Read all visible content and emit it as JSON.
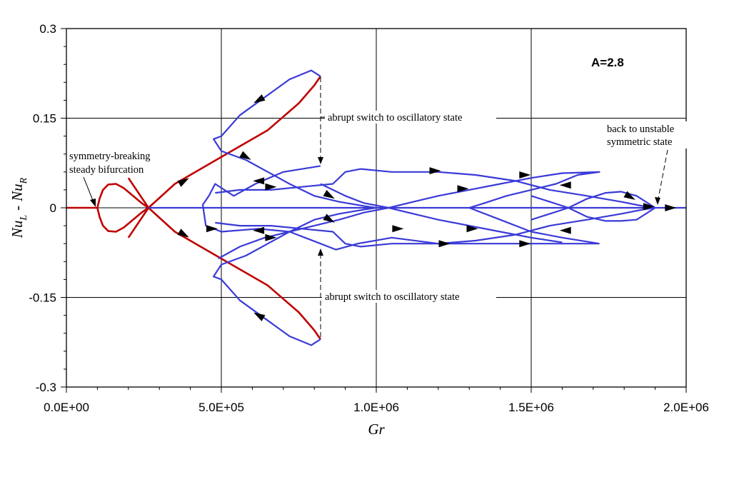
{
  "chart_data": {
    "type": "line",
    "xlabel": "Gr",
    "ylabel": {
      "base1": "Nu",
      "sub1": "L",
      "minus": "-",
      "base2": "Nu",
      "sub2": "R"
    },
    "xlim": [
      0,
      2000000
    ],
    "ylim": [
      -0.3,
      0.3
    ],
    "grid": true,
    "x_ticks": [
      {
        "value": 0,
        "label": "0.0E+00"
      },
      {
        "value": 500000,
        "label": "5.0E+05"
      },
      {
        "value": 1000000,
        "label": "1.0E+06"
      },
      {
        "value": 1500000,
        "label": "1.5E+06"
      },
      {
        "value": 2000000,
        "label": "2.0E+06"
      }
    ],
    "y_ticks": [
      {
        "value": 0.3,
        "label": "0.3"
      },
      {
        "value": 0.15,
        "label": "0.15"
      },
      {
        "value": 0,
        "label": "0"
      },
      {
        "value": -0.15,
        "label": "-0.15"
      },
      {
        "value": -0.3,
        "label": "-0.3"
      }
    ],
    "parameter_label": "A=2.8",
    "annotations": {
      "symmetry_line1": "symmetry-breaking",
      "symmetry_line2": "steady bifurcation",
      "switch_upper": "abrupt switch to oscillatory state",
      "switch_lower": "abrupt switch to oscillatory state",
      "back_line1": "back to unstable",
      "back_line2": "symmetric state"
    },
    "colors": {
      "steady": "#c00000",
      "oscillatory": "#3a3ad8"
    },
    "series": [
      {
        "key": "symmetric_steady",
        "color": "#c00000",
        "points": [
          [
            0,
            0
          ],
          [
            100000,
            0
          ]
        ]
      },
      {
        "key": "steady_bubble_upper",
        "color": "#c00000",
        "points": [
          [
            100000,
            0
          ],
          [
            107000,
            0.015
          ],
          [
            118000,
            0.03
          ],
          [
            135000,
            0.039
          ],
          [
            160000,
            0.04
          ],
          [
            185000,
            0.033
          ],
          [
            215000,
            0.02
          ],
          [
            245000,
            0.007
          ],
          [
            265000,
            0
          ]
        ]
      },
      {
        "key": "steady_bubble_lower",
        "color": "#c00000",
        "points": [
          [
            100000,
            0
          ],
          [
            107000,
            -0.015
          ],
          [
            118000,
            -0.03
          ],
          [
            135000,
            -0.039
          ],
          [
            160000,
            -0.04
          ],
          [
            185000,
            -0.033
          ],
          [
            215000,
            -0.02
          ],
          [
            245000,
            -0.007
          ],
          [
            265000,
            0
          ]
        ]
      },
      {
        "key": "asymmetric_steady_upper",
        "color": "#c00000",
        "points": [
          [
            200000,
            -0.05
          ],
          [
            265000,
            0
          ],
          [
            350000,
            0.04
          ],
          [
            450000,
            0.07
          ],
          [
            550000,
            0.1
          ],
          [
            650000,
            0.13
          ],
          [
            750000,
            0.175
          ],
          [
            800000,
            0.205
          ],
          [
            820000,
            0.22
          ]
        ]
      },
      {
        "key": "asymmetric_steady_lower",
        "color": "#c00000",
        "points": [
          [
            200000,
            0.05
          ],
          [
            265000,
            0
          ],
          [
            350000,
            -0.04
          ],
          [
            450000,
            -0.07
          ],
          [
            550000,
            -0.1
          ],
          [
            650000,
            -0.13
          ],
          [
            750000,
            -0.175
          ],
          [
            800000,
            -0.205
          ],
          [
            820000,
            -0.22
          ]
        ]
      },
      {
        "key": "symmetric_branch",
        "color": "#3a3ad8",
        "points": [
          [
            265000,
            0
          ],
          [
            2000000,
            0
          ]
        ]
      },
      {
        "key": "loop_upper_outer",
        "color": "#3a3ad8",
        "points": [
          [
            820000,
            0.22
          ],
          [
            790000,
            0.23
          ],
          [
            720000,
            0.215
          ],
          [
            640000,
            0.185
          ],
          [
            560000,
            0.155
          ],
          [
            500000,
            0.12
          ],
          [
            475000,
            0.115
          ],
          [
            500000,
            0.095
          ],
          [
            580000,
            0.08
          ],
          [
            650000,
            0.06
          ],
          [
            720000,
            0.04
          ],
          [
            800000,
            0.02
          ],
          [
            880000,
            0.01
          ],
          [
            960000,
            0.003
          ],
          [
            1000000,
            0
          ]
        ]
      },
      {
        "key": "loop_lower_outer",
        "color": "#3a3ad8",
        "points": [
          [
            820000,
            -0.22
          ],
          [
            790000,
            -0.23
          ],
          [
            720000,
            -0.215
          ],
          [
            640000,
            -0.185
          ],
          [
            560000,
            -0.155
          ],
          [
            500000,
            -0.12
          ],
          [
            475000,
            -0.115
          ],
          [
            500000,
            -0.095
          ],
          [
            580000,
            -0.08
          ],
          [
            650000,
            -0.06
          ],
          [
            720000,
            -0.04
          ],
          [
            800000,
            -0.02
          ],
          [
            880000,
            -0.01
          ],
          [
            960000,
            -0.003
          ],
          [
            1000000,
            0
          ]
        ]
      },
      {
        "key": "upper_band_a",
        "color": "#3a3ad8",
        "points": [
          [
            820000,
            0.07
          ],
          [
            700000,
            0.06
          ],
          [
            610000,
            0.04
          ],
          [
            540000,
            0.02
          ],
          [
            480000,
            0.04
          ],
          [
            460000,
            0.02
          ],
          [
            440000,
            0.005
          ],
          [
            450000,
            -0.03
          ],
          [
            500000,
            -0.04
          ],
          [
            620000,
            -0.035
          ],
          [
            720000,
            -0.04
          ],
          [
            820000,
            -0.06
          ],
          [
            870000,
            -0.07
          ],
          [
            940000,
            -0.06
          ],
          [
            1050000,
            -0.05
          ],
          [
            1200000,
            -0.06
          ],
          [
            1350000,
            -0.06
          ],
          [
            1500000,
            -0.06
          ],
          [
            1600000,
            -0.06
          ],
          [
            1720000,
            -0.06
          ]
        ]
      },
      {
        "key": "upper_band_b",
        "color": "#3a3ad8",
        "points": [
          [
            480000,
            0.025
          ],
          [
            560000,
            0.03
          ],
          [
            660000,
            0.03
          ],
          [
            760000,
            0.035
          ],
          [
            860000,
            0.04
          ],
          [
            900000,
            0.06
          ],
          [
            950000,
            0.065
          ],
          [
            1050000,
            0.06
          ],
          [
            1200000,
            0.06
          ],
          [
            1320000,
            0.055
          ],
          [
            1450000,
            0.045
          ],
          [
            1560000,
            0.03
          ],
          [
            1680000,
            0.02
          ],
          [
            1790000,
            0.01
          ],
          [
            1860000,
            0.003
          ],
          [
            1900000,
            0
          ]
        ]
      },
      {
        "key": "lower_band_b",
        "color": "#3a3ad8",
        "points": [
          [
            480000,
            -0.025
          ],
          [
            560000,
            -0.03
          ],
          [
            660000,
            -0.03
          ],
          [
            760000,
            -0.035
          ],
          [
            860000,
            -0.04
          ],
          [
            900000,
            -0.06
          ],
          [
            950000,
            -0.065
          ],
          [
            1050000,
            -0.06
          ],
          [
            1200000,
            -0.06
          ],
          [
            1320000,
            -0.055
          ],
          [
            1450000,
            -0.045
          ],
          [
            1560000,
            -0.03
          ],
          [
            1680000,
            -0.02
          ],
          [
            1790000,
            -0.01
          ],
          [
            1860000,
            -0.003
          ],
          [
            1900000,
            0
          ]
        ]
      },
      {
        "key": "crossing_up",
        "color": "#3a3ad8",
        "points": [
          [
            490000,
            -0.085
          ],
          [
            560000,
            -0.065
          ],
          [
            640000,
            -0.05
          ],
          [
            720000,
            -0.04
          ],
          [
            800000,
            -0.03
          ],
          [
            880000,
            -0.02
          ],
          [
            960000,
            -0.008
          ],
          [
            1040000,
            0
          ],
          [
            1120000,
            0.01
          ],
          [
            1200000,
            0.02
          ],
          [
            1300000,
            0.03
          ],
          [
            1400000,
            0.04
          ],
          [
            1500000,
            0.05
          ],
          [
            1600000,
            0.058
          ],
          [
            1720000,
            0.06
          ],
          [
            1650000,
            0.055
          ],
          [
            1580000,
            0.04
          ],
          [
            1500000,
            0.03
          ],
          [
            1420000,
            0.02
          ],
          [
            1350000,
            0.008
          ],
          [
            1300000,
            0
          ]
        ]
      },
      {
        "key": "crossing_tail",
        "color": "#3a3ad8",
        "points": [
          [
            1300000,
            0
          ],
          [
            1400000,
            -0.02
          ],
          [
            1500000,
            -0.04
          ],
          [
            1600000,
            -0.05
          ],
          [
            1720000,
            -0.06
          ]
        ]
      },
      {
        "key": "rise_to_return",
        "color": "#3a3ad8",
        "points": [
          [
            1500000,
            -0.02
          ],
          [
            1560000,
            -0.01
          ],
          [
            1620000,
            0
          ],
          [
            1680000,
            0.015
          ],
          [
            1740000,
            0.025
          ],
          [
            1790000,
            0.027
          ],
          [
            1840000,
            0.02
          ],
          [
            1900000,
            0
          ]
        ]
      },
      {
        "key": "dip_to_return",
        "color": "#3a3ad8",
        "points": [
          [
            1500000,
            0.02
          ],
          [
            1560000,
            0.01
          ],
          [
            1620000,
            0
          ],
          [
            1680000,
            -0.015
          ],
          [
            1740000,
            -0.022
          ],
          [
            1790000,
            -0.022
          ],
          [
            1840000,
            -0.02
          ],
          [
            1900000,
            0
          ]
        ]
      },
      {
        "key": "mid_diag_down",
        "color": "#3a3ad8",
        "points": [
          [
            820000,
            0.04
          ],
          [
            900000,
            0.02
          ],
          [
            960000,
            0.008
          ],
          [
            1040000,
            0
          ],
          [
            1120000,
            -0.01
          ],
          [
            1200000,
            -0.02
          ],
          [
            1300000,
            -0.03
          ],
          [
            1400000,
            -0.04
          ],
          [
            1500000,
            -0.05
          ],
          [
            1600000,
            -0.058
          ]
        ]
      }
    ],
    "direction_arrows": [
      {
        "x": 620000,
        "y": 0.18,
        "dir": "down-left"
      },
      {
        "x": 580000,
        "y": 0.085,
        "dir": "down-right"
      },
      {
        "x": 380000,
        "y": 0.045,
        "dir": "up-right"
      },
      {
        "x": 620000,
        "y": 0.045,
        "dir": "left"
      },
      {
        "x": 660000,
        "y": 0.035,
        "dir": "right"
      },
      {
        "x": 850000,
        "y": 0.02,
        "dir": "down-right"
      },
      {
        "x": 1190000,
        "y": 0.062,
        "dir": "right"
      },
      {
        "x": 1280000,
        "y": 0.032,
        "dir": "right"
      },
      {
        "x": 1480000,
        "y": 0.055,
        "dir": "right"
      },
      {
        "x": 1610000,
        "y": 0.038,
        "dir": "left"
      },
      {
        "x": 1820000,
        "y": 0.018,
        "dir": "down-right"
      },
      {
        "x": 1880000,
        "y": 0.002,
        "dir": "right"
      },
      {
        "x": 1950000,
        "y": 0.0,
        "dir": "right"
      },
      {
        "x": 620000,
        "y": -0.038,
        "dir": "left"
      },
      {
        "x": 660000,
        "y": -0.05,
        "dir": "right"
      },
      {
        "x": 850000,
        "y": -0.02,
        "dir": "down-right"
      },
      {
        "x": 1070000,
        "y": -0.035,
        "dir": "right"
      },
      {
        "x": 1220000,
        "y": -0.06,
        "dir": "right"
      },
      {
        "x": 1310000,
        "y": -0.035,
        "dir": "right"
      },
      {
        "x": 1480000,
        "y": -0.06,
        "dir": "right"
      },
      {
        "x": 1610000,
        "y": -0.038,
        "dir": "left"
      },
      {
        "x": 620000,
        "y": -0.18,
        "dir": "up-left"
      },
      {
        "x": 380000,
        "y": -0.045,
        "dir": "down-right"
      },
      {
        "x": 470000,
        "y": -0.035,
        "dir": "right"
      }
    ]
  }
}
